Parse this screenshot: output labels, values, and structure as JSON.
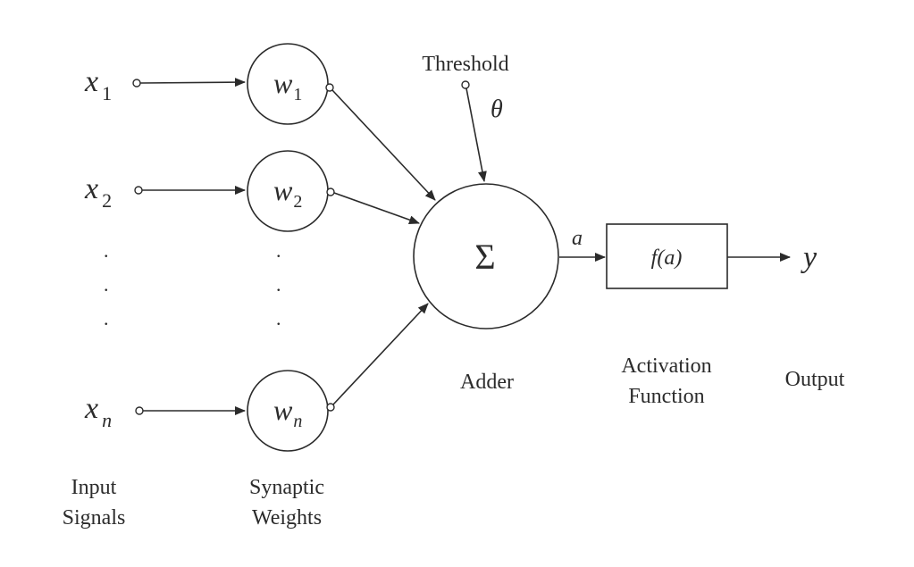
{
  "inputs": [
    {
      "var": "x",
      "sub": "1"
    },
    {
      "var": "x",
      "sub": "2"
    },
    {
      "var": "x",
      "sub": "n"
    }
  ],
  "weights": [
    {
      "var": "w",
      "sub": "1"
    },
    {
      "var": "w",
      "sub": "2"
    },
    {
      "var": "w",
      "sub": "n"
    }
  ],
  "threshold": {
    "label": "Threshold",
    "symbol": "θ"
  },
  "adder": {
    "symbol": "Σ",
    "label": "Adder"
  },
  "activation_input": "a",
  "activation": {
    "function": "f(a)",
    "label_line1": "Activation",
    "label_line2": "Function"
  },
  "output": {
    "symbol": "y",
    "label": "Output"
  },
  "ellipsis": ".",
  "captions": {
    "inputs_line1": "Input",
    "inputs_line2": "Signals",
    "weights_line1": "Synaptic",
    "weights_line2": "Weights"
  },
  "colors": {
    "stroke": "#2b2b2b",
    "background": "#ffffff"
  }
}
